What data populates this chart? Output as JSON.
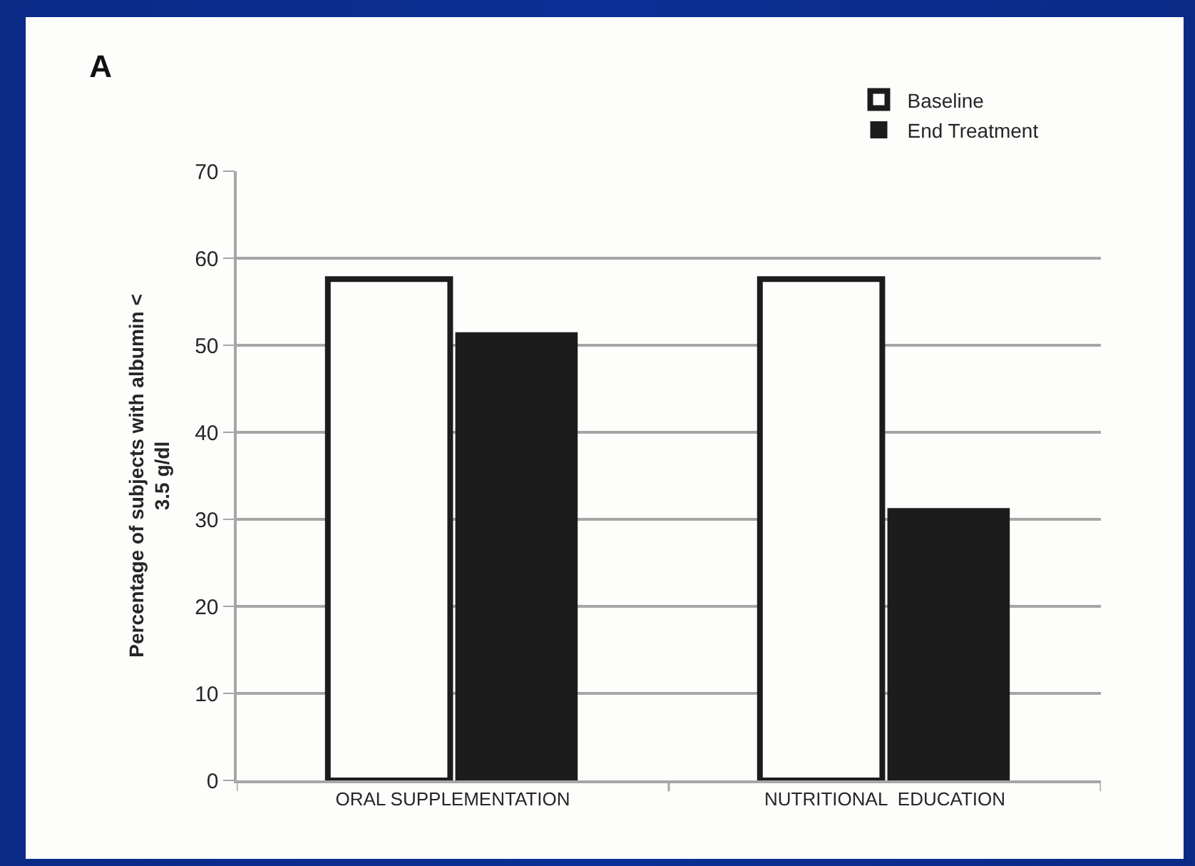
{
  "chart_data": {
    "type": "bar",
    "title": "A",
    "ylabel": "Percentage of subjects with albumin < 3.5 g/dl",
    "categories": [
      "ORAL SUPPLEMENTATION",
      "NUTRITIONAL  EDUCATION"
    ],
    "series": [
      {
        "name": "Baseline",
        "color": "#fdfdfb",
        "values": [
          57.6,
          57.6
        ]
      },
      {
        "name": "End Treatment",
        "color": "#1c1c1c",
        "values": [
          51.5,
          31.3
        ]
      }
    ],
    "ylim": [
      0,
      70
    ],
    "yticks": [
      0,
      10,
      20,
      30,
      40,
      50,
      60,
      70
    ],
    "grid": "y",
    "legend": "top right"
  }
}
